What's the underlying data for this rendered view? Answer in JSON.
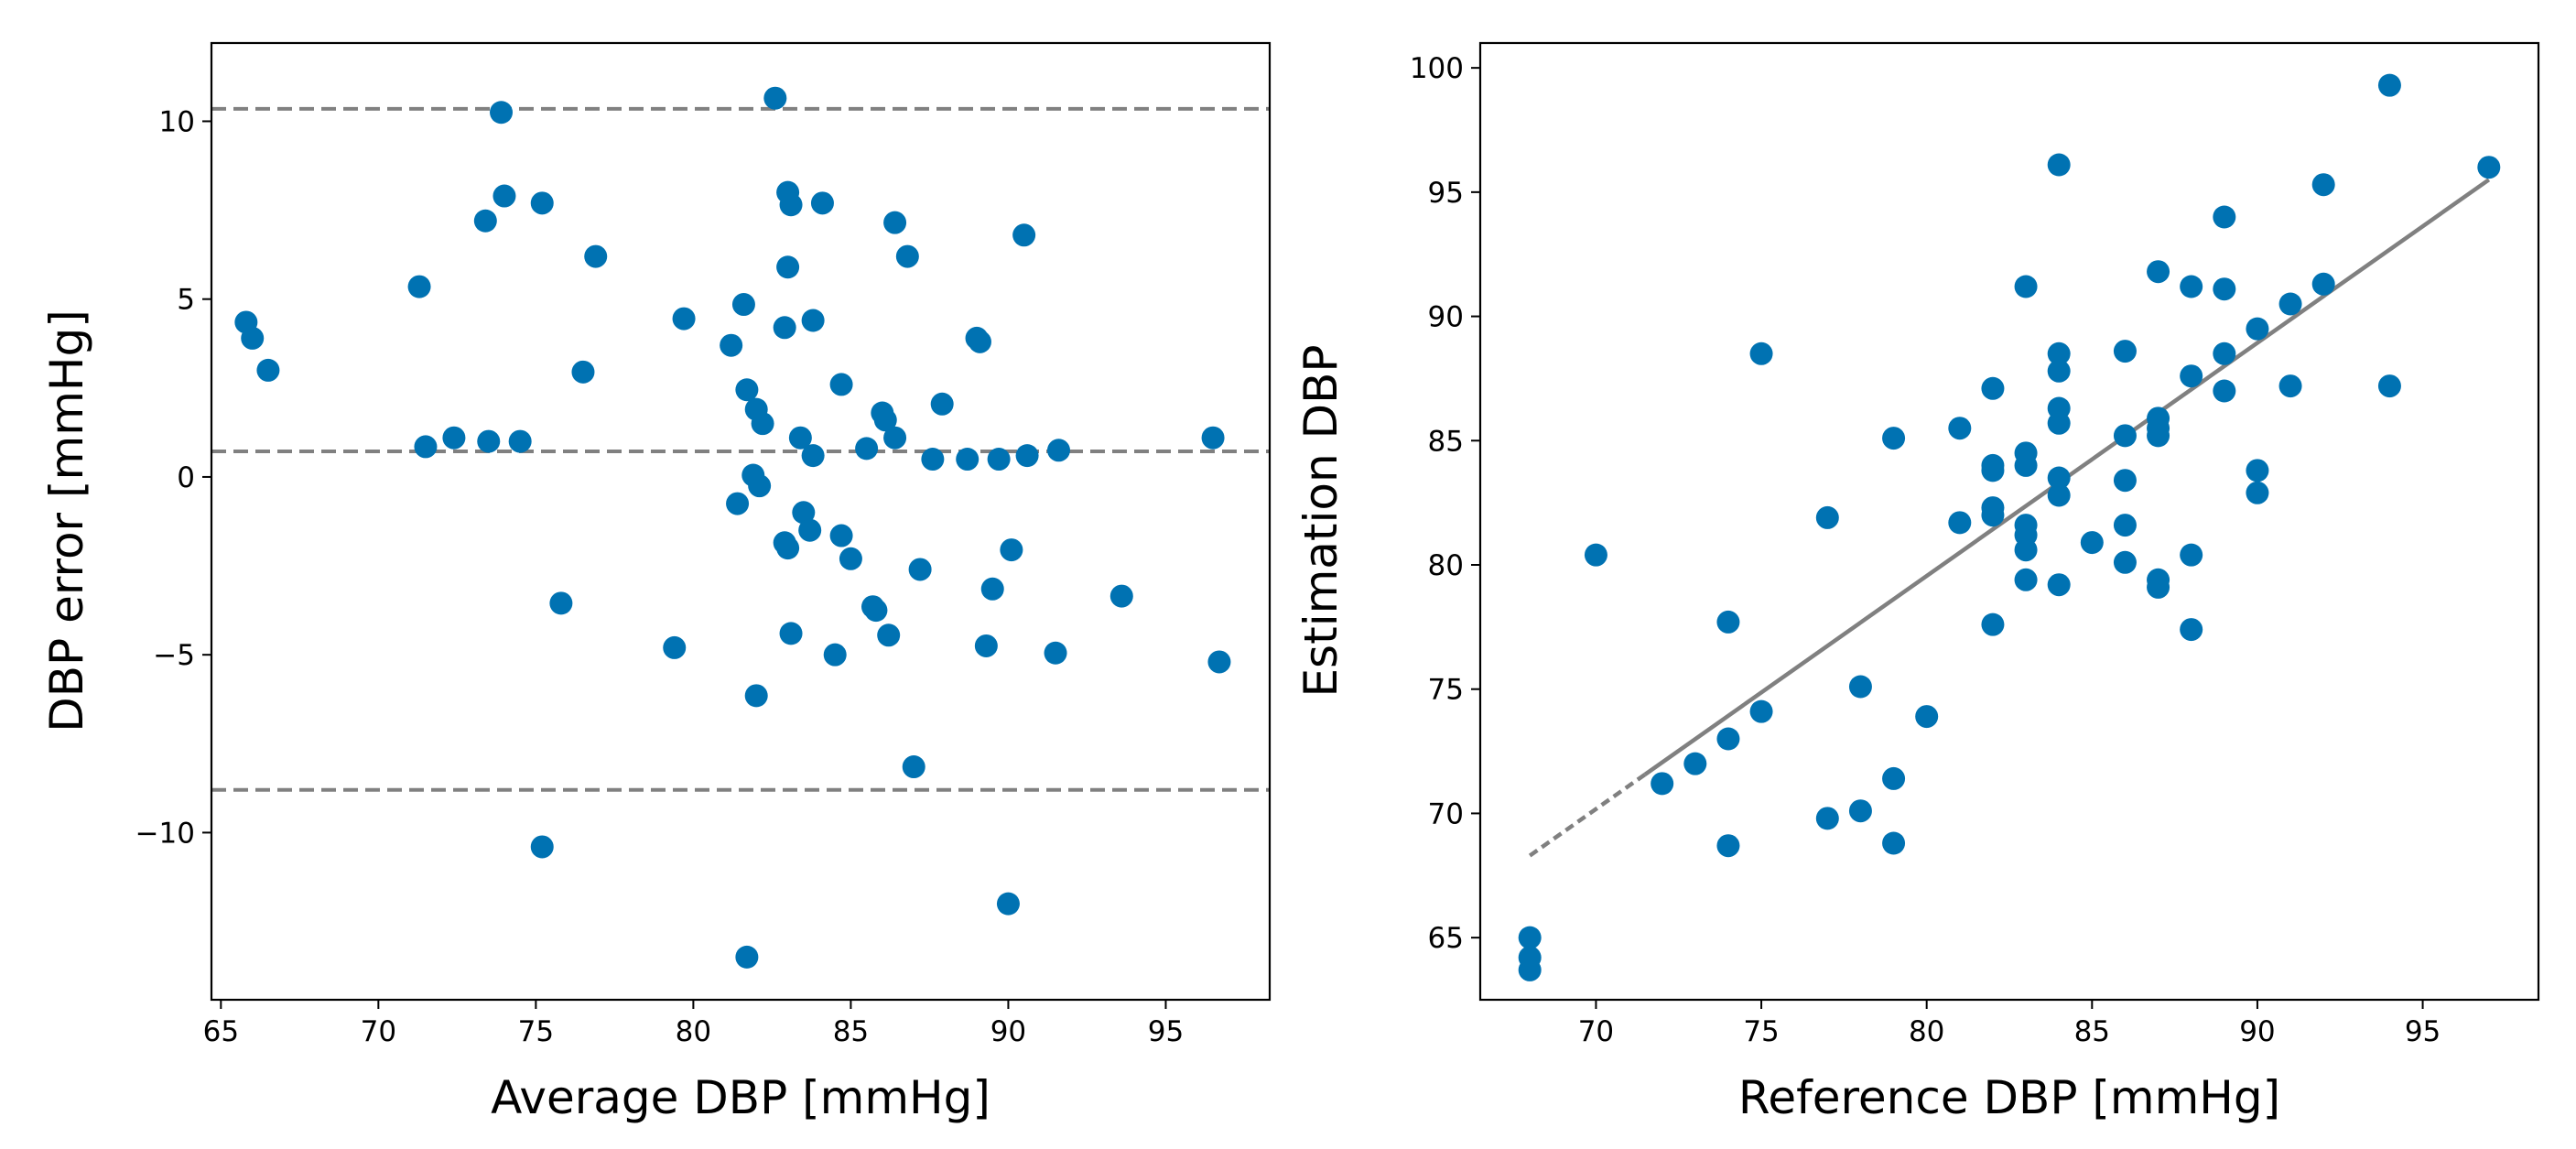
{
  "chart_data": [
    {
      "type": "scatter",
      "title": "",
      "xlabel": "Average DBP [mmHg]",
      "ylabel": "DBP error [mmHg]",
      "xlim": [
        64.7,
        98.3
      ],
      "ylim": [
        -14.7,
        12.2
      ],
      "xticks": [
        65,
        70,
        75,
        80,
        85,
        90,
        95
      ],
      "yticks": [
        10,
        5,
        0,
        -5,
        -10
      ],
      "xtick_labels": [
        "65",
        "70",
        "75",
        "80",
        "85",
        "90",
        "95"
      ],
      "ytick_labels": [
        "10",
        "5",
        "0",
        "−5",
        "−10"
      ],
      "grid": false,
      "marker_color": "#0072b2",
      "line_color": "#808080",
      "reference_lines": [
        {
          "name": "upper-limit",
          "y": 10.35
        },
        {
          "name": "mean-bias",
          "y": 0.72
        },
        {
          "name": "lower-limit",
          "y": -8.8
        }
      ],
      "points": [
        [
          65.8,
          4.35
        ],
        [
          66.0,
          3.9
        ],
        [
          66.5,
          3.0
        ],
        [
          71.3,
          5.35
        ],
        [
          71.5,
          0.85
        ],
        [
          72.4,
          1.1
        ],
        [
          73.4,
          7.2
        ],
        [
          73.5,
          1.0
        ],
        [
          73.9,
          10.25
        ],
        [
          74.0,
          7.9
        ],
        [
          74.5,
          1.0
        ],
        [
          75.2,
          7.7
        ],
        [
          75.2,
          -10.4
        ],
        [
          75.8,
          -3.55
        ],
        [
          76.5,
          2.95
        ],
        [
          76.9,
          6.2
        ],
        [
          79.4,
          -4.8
        ],
        [
          79.7,
          4.45
        ],
        [
          81.2,
          3.7
        ],
        [
          81.4,
          -0.75
        ],
        [
          81.6,
          4.85
        ],
        [
          81.7,
          -13.5
        ],
        [
          81.7,
          2.45
        ],
        [
          81.9,
          0.05
        ],
        [
          82.0,
          1.9
        ],
        [
          82.0,
          -6.15
        ],
        [
          82.1,
          -0.25
        ],
        [
          82.2,
          1.5
        ],
        [
          82.6,
          10.65
        ],
        [
          82.9,
          4.2
        ],
        [
          82.9,
          -1.85
        ],
        [
          83.0,
          8.0
        ],
        [
          83.0,
          5.9
        ],
        [
          83.0,
          -2.0
        ],
        [
          83.1,
          7.65
        ],
        [
          83.1,
          -4.4
        ],
        [
          83.4,
          1.1
        ],
        [
          83.5,
          -1.0
        ],
        [
          83.7,
          -1.5
        ],
        [
          83.8,
          0.6
        ],
        [
          83.8,
          4.4
        ],
        [
          84.1,
          7.7
        ],
        [
          84.5,
          -5.0
        ],
        [
          84.7,
          2.6
        ],
        [
          84.7,
          -1.65
        ],
        [
          85.0,
          -2.3
        ],
        [
          85.5,
          0.8
        ],
        [
          85.7,
          -3.65
        ],
        [
          85.8,
          -3.75
        ],
        [
          86.0,
          1.8
        ],
        [
          86.1,
          1.6
        ],
        [
          86.2,
          -4.45
        ],
        [
          86.4,
          7.15
        ],
        [
          86.4,
          1.1
        ],
        [
          86.8,
          6.2
        ],
        [
          87.0,
          -8.15
        ],
        [
          87.2,
          -2.6
        ],
        [
          87.6,
          0.5
        ],
        [
          87.9,
          2.05
        ],
        [
          88.7,
          0.5
        ],
        [
          89.0,
          3.9
        ],
        [
          89.1,
          3.8
        ],
        [
          89.3,
          -4.75
        ],
        [
          89.5,
          -3.15
        ],
        [
          89.7,
          0.5
        ],
        [
          90.0,
          -12.0
        ],
        [
          90.1,
          -2.05
        ],
        [
          90.5,
          6.8
        ],
        [
          90.6,
          0.6
        ],
        [
          91.5,
          -4.95
        ],
        [
          91.6,
          0.75
        ],
        [
          93.6,
          -3.35
        ],
        [
          96.5,
          1.1
        ],
        [
          96.7,
          -5.2
        ]
      ]
    },
    {
      "type": "scatter",
      "title": "",
      "xlabel": "Reference DBP [mmHg]",
      "ylabel": "Estimation DBP",
      "xlim": [
        66.5,
        98.5
      ],
      "ylim": [
        62.5,
        101.0
      ],
      "xticks": [
        70,
        75,
        80,
        85,
        90,
        95
      ],
      "yticks": [
        65,
        70,
        75,
        80,
        85,
        90,
        95,
        100
      ],
      "xtick_labels": [
        "70",
        "75",
        "80",
        "85",
        "90",
        "95"
      ],
      "ytick_labels": [
        "65",
        "70",
        "75",
        "80",
        "85",
        "90",
        "95",
        "100"
      ],
      "grid": false,
      "marker_color": "#0072b2",
      "line_color": "#808080",
      "fit_line": {
        "x": [
          68,
          97
        ],
        "y": [
          68.3,
          95.5
        ]
      },
      "points": [
        [
          68,
          65.0
        ],
        [
          68,
          64.2
        ],
        [
          68,
          63.7
        ],
        [
          70,
          80.4
        ],
        [
          72,
          71.2
        ],
        [
          73,
          72.0
        ],
        [
          74,
          77.7
        ],
        [
          74,
          73.0
        ],
        [
          74,
          68.7
        ],
        [
          75,
          88.5
        ],
        [
          75,
          74.1
        ],
        [
          77,
          81.9
        ],
        [
          77,
          69.8
        ],
        [
          78,
          75.1
        ],
        [
          78,
          70.1
        ],
        [
          79,
          85.1
        ],
        [
          79,
          71.4
        ],
        [
          79,
          68.8
        ],
        [
          80,
          73.9
        ],
        [
          81,
          85.5
        ],
        [
          81,
          81.7
        ],
        [
          82,
          87.1
        ],
        [
          82,
          84.0
        ],
        [
          82,
          83.8
        ],
        [
          82,
          82.3
        ],
        [
          82,
          82.0
        ],
        [
          82,
          77.6
        ],
        [
          83,
          91.2
        ],
        [
          83,
          84.5
        ],
        [
          83,
          84.0
        ],
        [
          83,
          81.6
        ],
        [
          83,
          81.2
        ],
        [
          83,
          80.6
        ],
        [
          83,
          79.4
        ],
        [
          84,
          96.1
        ],
        [
          84,
          88.5
        ],
        [
          84,
          87.8
        ],
        [
          84,
          86.3
        ],
        [
          84,
          85.7
        ],
        [
          84,
          83.5
        ],
        [
          84,
          82.8
        ],
        [
          84,
          79.2
        ],
        [
          85,
          80.9
        ],
        [
          86,
          88.6
        ],
        [
          86,
          85.2
        ],
        [
          86,
          83.4
        ],
        [
          86,
          81.6
        ],
        [
          86,
          80.1
        ],
        [
          87,
          91.8
        ],
        [
          87,
          85.9
        ],
        [
          87,
          85.5
        ],
        [
          87,
          85.2
        ],
        [
          87,
          79.4
        ],
        [
          87,
          79.1
        ],
        [
          88,
          91.2
        ],
        [
          88,
          87.6
        ],
        [
          88,
          80.4
        ],
        [
          88,
          77.4
        ],
        [
          89,
          94.0
        ],
        [
          89,
          91.1
        ],
        [
          89,
          88.5
        ],
        [
          89,
          87.0
        ],
        [
          90,
          89.5
        ],
        [
          90,
          83.8
        ],
        [
          90,
          82.9
        ],
        [
          91,
          90.5
        ],
        [
          91,
          87.2
        ],
        [
          92,
          95.3
        ],
        [
          92,
          91.3
        ],
        [
          94,
          99.3
        ],
        [
          94,
          87.2
        ],
        [
          97,
          96.0
        ]
      ]
    }
  ]
}
